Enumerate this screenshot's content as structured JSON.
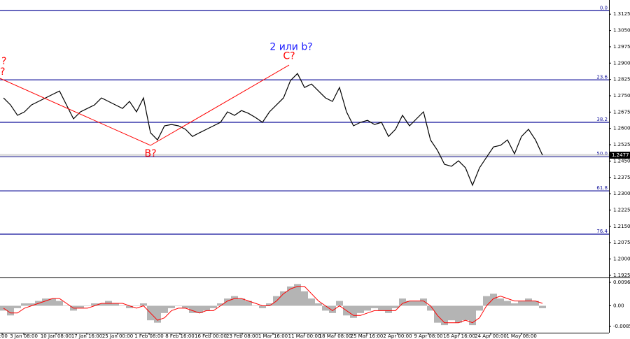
{
  "chart_data": [
    {
      "type": "line",
      "series": [
        {
          "color": "#000000",
          "values": [
            1.274,
            1.2708,
            1.266,
            1.2676,
            1.2708,
            1.2724,
            1.274,
            1.2756,
            1.2772,
            1.2708,
            1.2644,
            1.2676,
            1.2692,
            1.2708,
            1.274,
            1.2724,
            1.2708,
            1.2692,
            1.2724,
            1.2676,
            1.274,
            1.258,
            1.2547,
            1.2612,
            1.2618,
            1.2612,
            1.2596,
            1.2563,
            1.258,
            1.2596,
            1.2612,
            1.2628,
            1.2676,
            1.266,
            1.2682,
            1.2669,
            1.265,
            1.2628,
            1.2676,
            1.2708,
            1.274,
            1.282,
            1.2852,
            1.2788,
            1.2804,
            1.2772,
            1.274,
            1.2724,
            1.2788,
            1.2676,
            1.2612,
            1.2628,
            1.2637,
            1.2618,
            1.2628,
            1.2563,
            1.2596,
            1.266,
            1.2612,
            1.2644,
            1.2676,
            1.2547,
            1.2499,
            1.2435,
            1.2426,
            1.2451,
            1.2419,
            1.2339,
            1.2419,
            1.2467,
            1.2515,
            1.2522,
            1.2547,
            1.2483,
            1.2563,
            1.2596,
            1.2547,
            1.2477
          ]
        }
      ],
      "xlim": [
        0,
        87
      ],
      "xticks": [
        {
          "value": 0.3,
          "label": "2:00"
        },
        {
          "value": 3.4,
          "label": "3 Jan 08:00"
        },
        {
          "value": 8.0,
          "label": "10 Jan 08:00"
        },
        {
          "value": 12.4,
          "label": "17 Jan 16:00"
        },
        {
          "value": 16.8,
          "label": "25 Jan 00:00"
        },
        {
          "value": 21.3,
          "label": "1 Feb 08:00"
        },
        {
          "value": 25.7,
          "label": "8 Feb 16:00"
        },
        {
          "value": 30.1,
          "label": "16 Feb 00:00"
        },
        {
          "value": 34.6,
          "label": "23 Feb 08:00"
        },
        {
          "value": 39.0,
          "label": "1 Mar 16:00"
        },
        {
          "value": 43.5,
          "label": "11 Mar 00:00"
        },
        {
          "value": 47.9,
          "label": "18 Mar 08:00"
        },
        {
          "value": 52.4,
          "label": "25 Mar 16:00"
        },
        {
          "value": 56.8,
          "label": "2 Apr 00:00"
        },
        {
          "value": 61.2,
          "label": "9 Apr 08:00"
        },
        {
          "value": 65.6,
          "label": "16 Apr 16:00"
        },
        {
          "value": 70.1,
          "label": "24 Apr 00:00"
        },
        {
          "value": 74.5,
          "label": "1 May 08:00"
        }
      ],
      "ylim": [
        1.1915,
        1.319
      ],
      "yticks": [
        1.3125,
        {
          "value": 1.305,
          "label": "1.3050"
        },
        1.2975,
        {
          "value": 1.29,
          "label": "1.2900"
        },
        1.2825,
        {
          "value": 1.275,
          "label": "1.2750"
        },
        1.2675,
        {
          "value": 1.26,
          "label": "1.2600"
        },
        1.2525,
        {
          "value": 1.245,
          "label": "1.2450"
        },
        1.2375,
        {
          "value": 1.23,
          "label": "1.2300"
        },
        1.2225,
        {
          "value": 1.215,
          "label": "1.2150"
        },
        1.2075,
        {
          "value": 1.2,
          "label": "1.2000"
        },
        1.1925
      ],
      "level_color": "#10109a",
      "levels": [
        {
          "label": "0.0",
          "value": 1.3141
        },
        {
          "label": "23.6",
          "value": 1.2823
        },
        {
          "label": "38.2",
          "value": 1.2628
        },
        {
          "label": "50.0",
          "value": 1.247
        },
        {
          "label": "61.8",
          "value": 1.2313
        },
        {
          "label": "76.4",
          "value": 1.2114
        }
      ],
      "wave": {
        "color": "#ff0000",
        "x": [
          0,
          21.5,
          41.3
        ],
        "values": [
          1.283,
          1.2522,
          1.2891
        ]
      },
      "annotations": [
        {
          "text": "2 или b?",
          "x": 41.6,
          "y": 1.2974,
          "color": "#1a1aff"
        },
        {
          "text": "C?",
          "x": 41.3,
          "y": 1.2932,
          "color": "#ff0000"
        },
        {
          "text": "B?",
          "x": 21.5,
          "y": 1.2483,
          "color": "#ff0000"
        },
        {
          "text": "?",
          "x": 0.2,
          "y": 1.2907,
          "color": "#ff0000"
        },
        {
          "text": "?",
          "x": 0,
          "y": 1.2859,
          "color": "#ff0000"
        }
      ],
      "last_price": 1.2477
    },
    {
      "type": "bar",
      "xlim": [
        0,
        87
      ],
      "ylim": [
        -0.01115,
        0.01142
      ],
      "yticks": [
        0.00968,
        {
          "value": 0,
          "label": "0.00"
        },
        -0.00855
      ],
      "series": [
        {
          "color": "#b4b4b4",
          "values": [
            -0.002,
            -0.004,
            -0.001,
            0.001,
            0.001,
            0.002,
            0.003,
            0.003,
            0.002,
            0.0,
            -0.002,
            -0.001,
            0.0,
            0.001,
            0.001,
            0.002,
            0.001,
            0.0,
            -0.001,
            0.0,
            0.001,
            -0.006,
            -0.007,
            -0.003,
            -0.001,
            0.0,
            -0.001,
            -0.003,
            -0.003,
            -0.002,
            -0.001,
            0.001,
            0.003,
            0.004,
            0.003,
            0.002,
            0.0,
            -0.001,
            0.001,
            0.004,
            0.006,
            0.008,
            0.009,
            0.006,
            0.003,
            0.001,
            -0.002,
            -0.003,
            0.002,
            -0.004,
            -0.005,
            -0.003,
            -0.002,
            -0.001,
            -0.002,
            -0.003,
            -0.001,
            0.003,
            0.002,
            0.002,
            0.003,
            -0.002,
            -0.007,
            -0.008,
            -0.006,
            -0.007,
            -0.006,
            -0.008,
            -0.002,
            0.004,
            0.005,
            0.003,
            0.002,
            0.001,
            0.002,
            0.003,
            0.002,
            -0.001
          ]
        },
        {
          "type": "line",
          "color": "#ff0000",
          "values": [
            -0.001,
            -0.003,
            -0.003,
            -0.001,
            0.0,
            0.001,
            0.002,
            0.003,
            0.003,
            0.001,
            -0.001,
            -0.001,
            -0.001,
            0.0,
            0.001,
            0.001,
            0.001,
            0.001,
            0.0,
            -0.001,
            0.0,
            -0.003,
            -0.006,
            -0.005,
            -0.002,
            -0.001,
            -0.001,
            -0.002,
            -0.003,
            -0.002,
            -0.002,
            0.0,
            0.002,
            0.003,
            0.003,
            0.002,
            0.001,
            0.0,
            0.0,
            0.002,
            0.005,
            0.007,
            0.008,
            0.008,
            0.005,
            0.002,
            0.0,
            -0.002,
            0.0,
            -0.002,
            -0.004,
            -0.004,
            -0.003,
            -0.002,
            -0.002,
            -0.002,
            -0.002,
            0.001,
            0.002,
            0.002,
            0.002,
            0.0,
            -0.004,
            -0.007,
            -0.007,
            -0.007,
            -0.006,
            -0.007,
            -0.005,
            0.0,
            0.003,
            0.004,
            0.003,
            0.002,
            0.002,
            0.002,
            0.002,
            0.001
          ]
        }
      ]
    }
  ]
}
